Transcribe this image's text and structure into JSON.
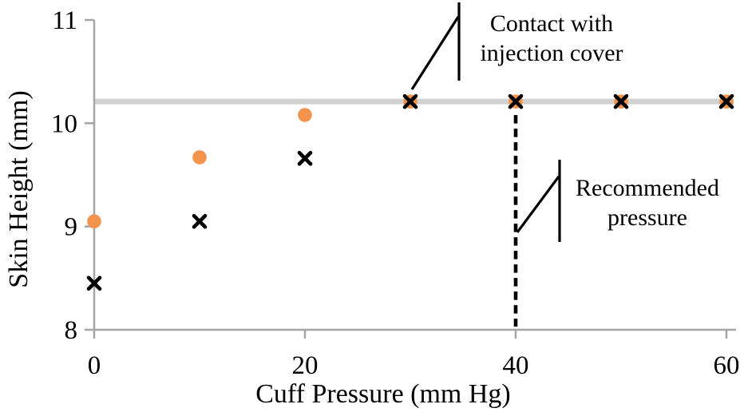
{
  "chart_data": {
    "type": "scatter",
    "title": "",
    "xlabel": "Cuff Pressure (mm Hg)",
    "ylabel": "Skin Height (mm)",
    "xlim": [
      0,
      60
    ],
    "ylim": [
      8,
      11
    ],
    "x_ticks": [
      0,
      20,
      40,
      60
    ],
    "y_ticks": [
      11,
      10,
      9,
      8
    ],
    "grid": false,
    "legend": false,
    "axis_color": "#A6A6A6",
    "x": [
      0,
      10,
      20,
      30,
      40,
      50,
      60
    ],
    "series": [
      {
        "name": "circle-series",
        "marker": "circle",
        "color": "#F2944D",
        "values": [
          9.05,
          9.67,
          10.08,
          10.21,
          10.21,
          10.21,
          10.21
        ]
      },
      {
        "name": "x-series",
        "marker": "x",
        "color": "#000000",
        "values": [
          8.45,
          9.05,
          9.66,
          10.21,
          10.21,
          10.21,
          10.21
        ]
      }
    ],
    "reference_lines": [
      {
        "orientation": "horizontal",
        "value": 10.21,
        "style": "solid",
        "color": "#D2D2D2",
        "label": "Contact with injection cover"
      },
      {
        "orientation": "vertical",
        "value": 40,
        "style": "dashed",
        "color": "#000000",
        "label": "Recommended pressure"
      }
    ]
  },
  "annotations": {
    "contact": {
      "line1": "Contact with",
      "line2": "injection cover"
    },
    "recommended": {
      "line1": "Recommended",
      "line2": "pressure"
    }
  }
}
